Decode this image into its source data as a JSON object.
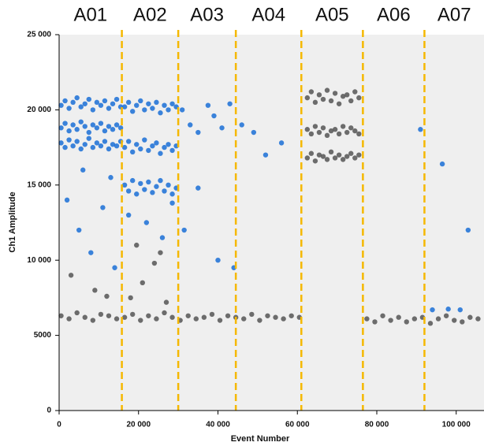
{
  "chart_data": {
    "type": "scatter",
    "x_label": "Event Number",
    "y_label": "Ch1 Amplitude",
    "wells": {
      "labels": [
        "A01",
        "A02",
        "A03",
        "A04",
        "A05",
        "A06",
        "A07"
      ],
      "dividers": [
        15800,
        30000,
        44500,
        61000,
        76500,
        92000
      ],
      "color": "#f5b800"
    },
    "xlim": [
      0,
      107000
    ],
    "ylim": [
      0,
      25000
    ],
    "xticks": [
      0,
      {
        "value": 20000,
        "label": "20 000"
      },
      {
        "value": 40000,
        "label": "40 000"
      },
      {
        "value": 60000,
        "label": "60 000"
      },
      {
        "value": 80000,
        "label": "80 000"
      },
      {
        "value": 100000,
        "label": "100 000"
      }
    ],
    "yticks": [
      0,
      5000,
      {
        "value": 10000,
        "label": "10 000"
      },
      {
        "value": 15000,
        "label": "15 000"
      },
      {
        "value": 20000,
        "label": "20 000"
      },
      {
        "value": 25000,
        "label": "25 000"
      }
    ],
    "series": [
      {
        "color": "#555555",
        "x": [
          500,
          2500,
          4500,
          6500,
          8500,
          10500,
          12500,
          14500,
          16500,
          18500,
          20500,
          22500,
          24500,
          26500,
          28500,
          30500,
          32500,
          34500,
          36500,
          38500,
          40500,
          42500,
          44500,
          46500,
          48500,
          50500,
          52500,
          54500,
          56500,
          58500,
          60500,
          77500,
          79500,
          81500,
          83500,
          85500,
          87500,
          89500,
          91500,
          93500,
          95500,
          97500,
          99500,
          101500,
          103500,
          105500,
          62500,
          63500,
          64500,
          65500,
          66500,
          67500,
          68500,
          69500,
          70500,
          71500,
          72500,
          73500,
          74500,
          75500,
          62500,
          63500,
          64500,
          65500,
          66500,
          67500,
          68500,
          69500,
          70500,
          71500,
          72500,
          73500,
          74500,
          75500,
          62500,
          63500,
          64500,
          65500,
          66500,
          67500,
          68500,
          69500,
          70500,
          71500,
          72500,
          73500,
          74500,
          75500,
          3000,
          9000,
          18000,
          21000,
          24000,
          27000,
          19500,
          25500,
          12000
        ],
        "values": [
          6300,
          6100,
          6500,
          6200,
          6000,
          6400,
          6300,
          6100,
          6200,
          6400,
          6000,
          6300,
          6100,
          6500,
          6200,
          6000,
          6300,
          6100,
          6200,
          6400,
          6000,
          6300,
          6200,
          6100,
          6400,
          6000,
          6300,
          6200,
          6100,
          6300,
          6200,
          6100,
          5900,
          6300,
          6000,
          6200,
          5900,
          6100,
          6200,
          5800,
          6100,
          6300,
          6000,
          5900,
          6200,
          6100,
          20800,
          21200,
          20500,
          21000,
          20700,
          21300,
          20600,
          21100,
          20400,
          20900,
          21000,
          20600,
          21200,
          20800,
          18700,
          18400,
          18900,
          18500,
          18800,
          18300,
          18600,
          18700,
          18400,
          18900,
          18500,
          18800,
          18600,
          18400,
          16800,
          17100,
          16600,
          17000,
          16900,
          16700,
          17200,
          16800,
          17000,
          16700,
          16900,
          17100,
          16800,
          17000,
          9000,
          8000,
          7500,
          8500,
          9800,
          7200,
          11000,
          10500,
          7600
        ]
      },
      {
        "color": "#1a6fd6",
        "x": [
          500,
          1500,
          2500,
          3500,
          4500,
          5500,
          6500,
          7500,
          8500,
          9500,
          10500,
          11500,
          12500,
          13500,
          14500,
          15500,
          500,
          1500,
          2500,
          3500,
          4500,
          5500,
          6500,
          7500,
          8500,
          9500,
          10500,
          11500,
          12500,
          13500,
          14500,
          15500,
          500,
          1500,
          2500,
          3500,
          4500,
          5500,
          6500,
          7500,
          8500,
          9500,
          10500,
          11500,
          12500,
          13500,
          14500,
          15500,
          16500,
          17500,
          18500,
          19500,
          20500,
          21500,
          22500,
          23500,
          24500,
          25500,
          26500,
          27500,
          28500,
          29500,
          16500,
          17500,
          18500,
          19500,
          20500,
          21500,
          22500,
          23500,
          24500,
          25500,
          26500,
          27500,
          28500,
          29500,
          16500,
          17500,
          18500,
          19500,
          20500,
          21500,
          22500,
          23500,
          24500,
          25500,
          26500,
          27500,
          28500,
          29500,
          2000,
          5000,
          8000,
          11000,
          14000,
          6000,
          13000,
          17500,
          22000,
          26000,
          28500,
          31000,
          33000,
          35000,
          37500,
          39000,
          41000,
          43000,
          31500,
          35000,
          40000,
          46000,
          49000,
          52000,
          44000,
          56000,
          103000,
          96500,
          91000,
          94000,
          98000,
          101000
        ],
        "values": [
          20300,
          20600,
          20100,
          20500,
          20800,
          20200,
          20400,
          20700,
          20000,
          20500,
          20300,
          20600,
          20100,
          20400,
          20700,
          20200,
          18800,
          19100,
          18600,
          19000,
          18700,
          19200,
          18900,
          18500,
          19000,
          18800,
          19100,
          18600,
          18900,
          18700,
          19000,
          18800,
          17800,
          17500,
          18000,
          17600,
          17900,
          17400,
          17700,
          18100,
          17500,
          17800,
          17600,
          17900,
          17400,
          17700,
          17600,
          17900,
          20200,
          20500,
          19900,
          20300,
          20600,
          20000,
          20400,
          20100,
          20500,
          19800,
          20300,
          20000,
          20400,
          20200,
          17500,
          17900,
          17200,
          17700,
          17400,
          18000,
          17300,
          17600,
          17800,
          17100,
          17500,
          17700,
          17300,
          17600,
          15000,
          14600,
          15300,
          14400,
          15100,
          14700,
          15200,
          14500,
          14900,
          15300,
          14600,
          15000,
          14400,
          14800,
          14000,
          12000,
          10500,
          13500,
          9500,
          16000,
          15500,
          13000,
          12500,
          11500,
          13800,
          20000,
          19000,
          18500,
          20300,
          19600,
          18800,
          20400,
          12000,
          14800,
          10000,
          19000,
          18500,
          17000,
          9500,
          17800,
          12000,
          16400,
          18700,
          6700,
          6750,
          6700
        ]
      }
    ]
  }
}
